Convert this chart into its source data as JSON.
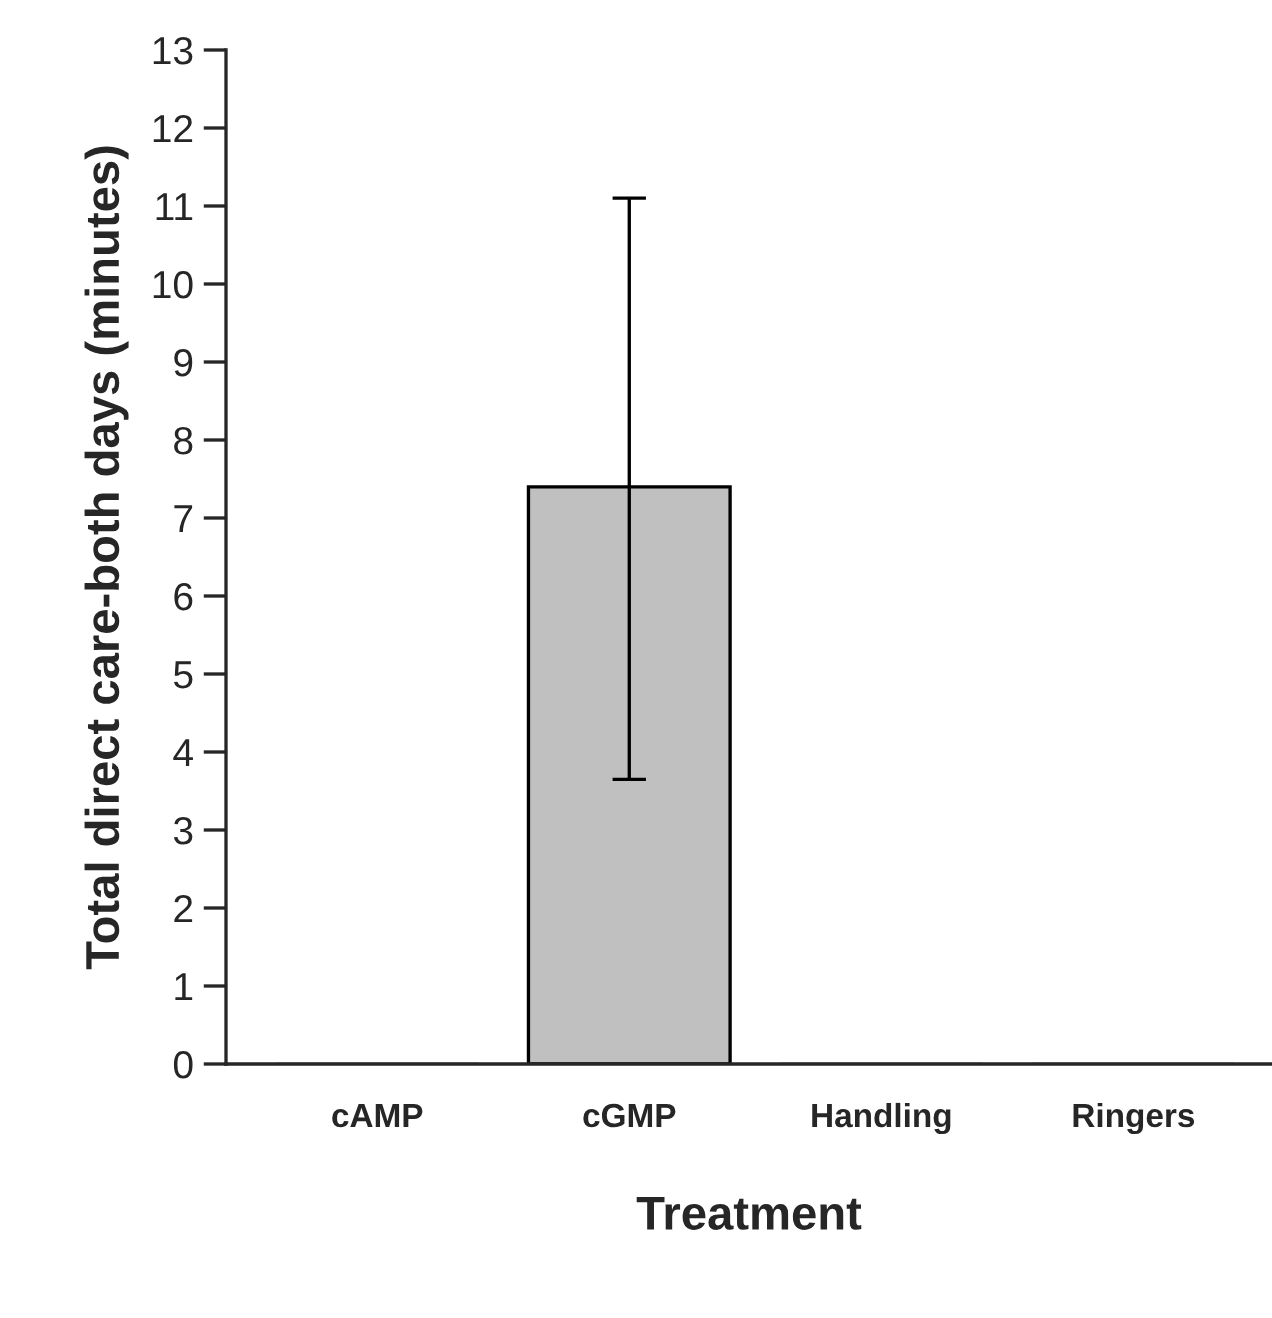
{
  "chart_data": {
    "type": "bar",
    "xlabel": "Treatment",
    "ylabel": "Total direct care-both days (minutes)",
    "categories": [
      "cAMP",
      "cGMP",
      "Handling",
      "Ringers"
    ],
    "values": [
      0,
      7.4,
      0,
      0
    ],
    "errors": [
      null,
      [
        3.65,
        11.1
      ],
      null,
      null
    ],
    "color": "#c0c0c0",
    "ylim": [
      0,
      13
    ],
    "yticks": [
      0,
      1,
      2,
      3,
      4,
      5,
      6,
      7,
      8,
      9,
      10,
      11,
      12,
      13
    ],
    "grid": false
  }
}
